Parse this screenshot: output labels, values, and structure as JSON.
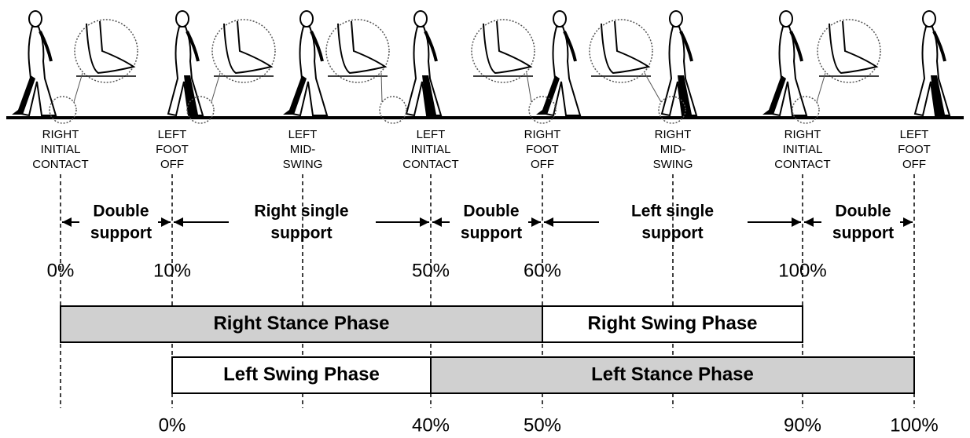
{
  "events": [
    {
      "lines": [
        "RIGHT",
        "INITIAL",
        "CONTACT"
      ]
    },
    {
      "lines": [
        "LEFT",
        "FOOT",
        "OFF"
      ]
    },
    {
      "lines": [
        "LEFT",
        "MID-",
        "SWING"
      ]
    },
    {
      "lines": [
        "LEFT",
        "INITIAL",
        "CONTACT"
      ]
    },
    {
      "lines": [
        "RIGHT",
        "FOOT",
        "OFF"
      ]
    },
    {
      "lines": [
        "RIGHT",
        "MID-",
        "SWING"
      ]
    },
    {
      "lines": [
        "RIGHT",
        "INITIAL",
        "CONTACT"
      ]
    },
    {
      "lines": [
        "LEFT",
        "FOOT",
        "OFF"
      ]
    }
  ],
  "supports": [
    {
      "lines": [
        "Double",
        "support"
      ]
    },
    {
      "lines": [
        "Right single",
        "support"
      ]
    },
    {
      "lines": [
        "Double",
        "support"
      ]
    },
    {
      "lines": [
        "Left single",
        "support"
      ]
    },
    {
      "lines": [
        "Double",
        "support"
      ]
    }
  ],
  "top_percentages": [
    "0%",
    "10%",
    "50%",
    "60%",
    "100%"
  ],
  "phases": [
    {
      "label": "Right Stance Phase"
    },
    {
      "label": "Right Swing Phase"
    },
    {
      "label": "Left Swing Phase"
    },
    {
      "label": "Left Stance Phase"
    }
  ],
  "bottom_percentages": [
    "0%",
    "40%",
    "50%",
    "90%",
    "100%"
  ]
}
